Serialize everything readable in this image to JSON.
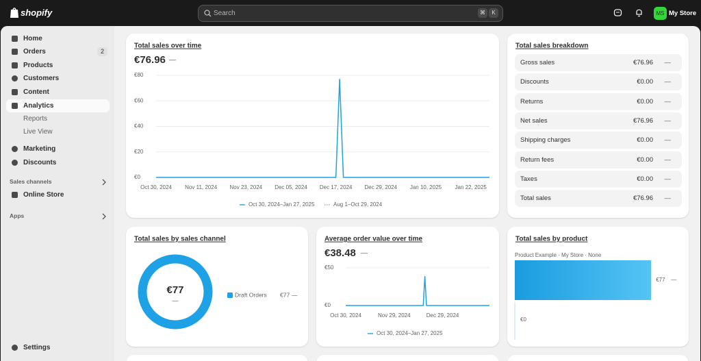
{
  "header": {
    "logo": "shopify",
    "search": "Search",
    "shortcut": [
      "⌘",
      "K"
    ],
    "avatar": "MS",
    "store": "My Store"
  },
  "sidebar": {
    "nav": [
      {
        "label": "Home"
      },
      {
        "label": "Orders",
        "badge": "2"
      },
      {
        "label": "Products"
      },
      {
        "label": "Customers"
      },
      {
        "label": "Content"
      },
      {
        "label": "Analytics"
      }
    ],
    "analytics_sub": [
      "Reports",
      "Live View"
    ],
    "nav2": [
      "Marketing",
      "Discounts"
    ],
    "sales_channels": "Sales channels",
    "online_store": "Online Store",
    "apps": "Apps",
    "settings": "Settings"
  },
  "sales_over_time": {
    "type": "line",
    "title": "Total sales over time",
    "value": "€76.96",
    "change": "—",
    "x": [
      "Oct 30, 2024",
      "Dec 17, 2024",
      "Dec 18, 2024",
      "Dec 19, 2024",
      "Jan 27, 2025"
    ],
    "values": [
      0,
      0,
      76.96,
      0,
      0
    ],
    "color": "#1aa3e8",
    "xlim": [
      "Oct 30, 2024",
      "Jan 27, 2025"
    ],
    "xticks": [
      "Oct 30, 2024",
      "Nov 11, 2024",
      "Nov 23, 2024",
      "Dec 05, 2024",
      "Dec 17, 2024",
      "Dec 29, 2024",
      "Jan 10, 2025",
      "Jan 22, 2025"
    ],
    "ylim": [
      0,
      80
    ],
    "yticks": [
      {
        "value": 0,
        "label": "€0"
      },
      {
        "value": 20,
        "label": "€20"
      },
      {
        "value": 40,
        "label": "€40"
      },
      {
        "value": 60,
        "label": "€60"
      },
      {
        "value": 80,
        "label": "€80"
      }
    ],
    "legend": [
      "Oct 30, 2024–Jan 27, 2025",
      "Aug 1–Oct 29, 2024"
    ]
  },
  "breakdown": {
    "title": "Total sales breakdown",
    "rows": [
      [
        "Gross sales",
        "€76.96",
        "—"
      ],
      [
        "Discounts",
        "€0.00",
        "—"
      ],
      [
        "Returns",
        "€0.00",
        "—"
      ],
      [
        "Net sales",
        "€76.96",
        "—"
      ],
      [
        "Shipping charges",
        "€0.00",
        "—"
      ],
      [
        "Return fees",
        "€0.00",
        "—"
      ],
      [
        "Taxes",
        "€0.00",
        "—"
      ],
      [
        "Total sales",
        "€76.96",
        "—"
      ]
    ]
  },
  "by_channel": {
    "type": "pie",
    "title": "Total sales by sales channel",
    "total": "€77",
    "total_change": "—",
    "categories": [
      "Draft Orders"
    ],
    "values": [
      77
    ],
    "value_labels": [
      "€77"
    ],
    "changes": [
      "—"
    ],
    "colors": [
      "#1fa2e5"
    ]
  },
  "aov": {
    "type": "line",
    "title": "Average order value over time",
    "value": "€38.48",
    "change": "—",
    "x": [
      "Oct 30, 2024",
      "Dec 17, 2024",
      "Dec 18, 2024",
      "Dec 19, 2024",
      "Jan 27, 2025"
    ],
    "values": [
      0,
      0,
      38.48,
      0,
      0
    ],
    "color": "#1aa3e8",
    "xlim": [
      "Oct 30, 2024",
      "Jan 27, 2025"
    ],
    "xticks": [
      "Oct 30, 2024",
      "Nov 29, 2024",
      "Dec 29, 2024"
    ],
    "ylim": [
      0,
      50
    ],
    "yticks": [
      {
        "value": 0,
        "label": "€0"
      },
      {
        "value": 50,
        "label": "€50"
      }
    ],
    "legend": [
      "Oct 30, 2024–Jan 27, 2025"
    ]
  },
  "by_product": {
    "type": "bar",
    "title": "Total sales by product",
    "categories": [
      "Product Example · My Store · None"
    ],
    "values": [
      77
    ],
    "value_labels": [
      "€77"
    ],
    "changes": [
      "—"
    ],
    "color": "#1fa2e5",
    "xlim": [
      0,
      80
    ],
    "xticks": [
      {
        "value": 0,
        "label": "€0"
      }
    ]
  }
}
